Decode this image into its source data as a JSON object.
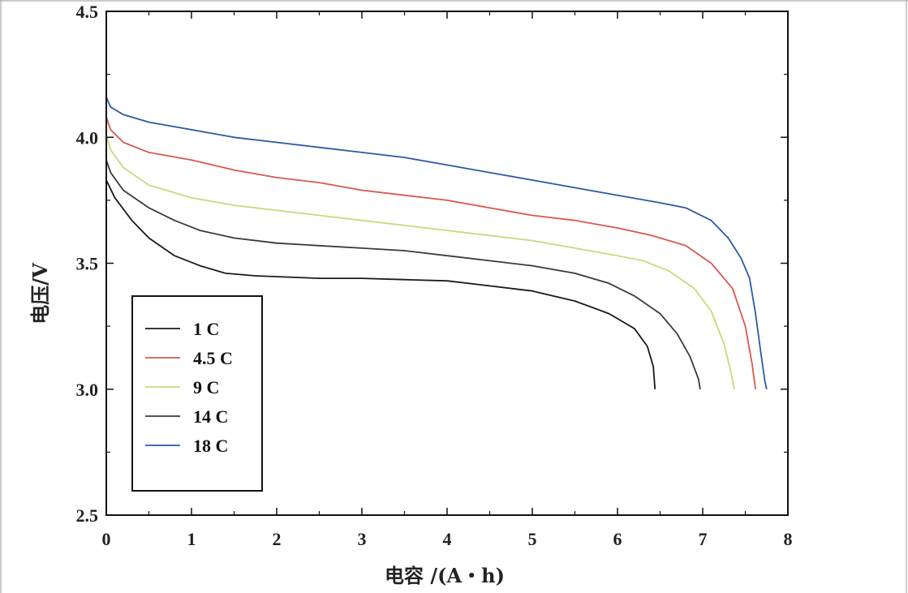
{
  "chart_data": {
    "type": "line",
    "title": "",
    "xlabel": "电容 /(A・h)",
    "ylabel": "电压/V",
    "xlim": [
      0,
      8
    ],
    "ylim": [
      2.5,
      4.5
    ],
    "xticks": [
      0,
      1,
      2,
      3,
      4,
      5,
      6,
      7,
      8
    ],
    "yticks": [
      2.5,
      3.0,
      3.5,
      4.0,
      4.5
    ],
    "xtick_labels": [
      "0",
      "1",
      "2",
      "3",
      "4",
      "5",
      "6",
      "7",
      "8"
    ],
    "ytick_labels": [
      "2.5",
      "3.0",
      "3.5",
      "4.0",
      "4.5"
    ],
    "grid": false,
    "legend_position": "lower-left",
    "series": [
      {
        "name": "1 C",
        "color": "#1a1a1a",
        "points": [
          [
            0,
            3.83
          ],
          [
            0.1,
            3.76
          ],
          [
            0.3,
            3.67
          ],
          [
            0.5,
            3.6
          ],
          [
            0.8,
            3.53
          ],
          [
            1.1,
            3.49
          ],
          [
            1.4,
            3.46
          ],
          [
            1.75,
            3.45
          ],
          [
            2.5,
            3.44
          ],
          [
            3.0,
            3.44
          ],
          [
            3.5,
            3.435
          ],
          [
            4.0,
            3.43
          ],
          [
            4.5,
            3.41
          ],
          [
            5.0,
            3.39
          ],
          [
            5.5,
            3.35
          ],
          [
            5.9,
            3.3
          ],
          [
            6.2,
            3.24
          ],
          [
            6.35,
            3.17
          ],
          [
            6.42,
            3.09
          ],
          [
            6.44,
            3.0
          ]
        ]
      },
      {
        "name": "4.5 C",
        "color": "#d9584f",
        "points": [
          [
            0,
            4.08
          ],
          [
            0.05,
            4.03
          ],
          [
            0.2,
            3.98
          ],
          [
            0.5,
            3.94
          ],
          [
            1.0,
            3.91
          ],
          [
            1.5,
            3.87
          ],
          [
            2.0,
            3.84
          ],
          [
            2.5,
            3.82
          ],
          [
            3.0,
            3.79
          ],
          [
            3.5,
            3.77
          ],
          [
            4.0,
            3.75
          ],
          [
            4.5,
            3.72
          ],
          [
            5.0,
            3.69
          ],
          [
            5.5,
            3.67
          ],
          [
            6.0,
            3.64
          ],
          [
            6.4,
            3.61
          ],
          [
            6.8,
            3.57
          ],
          [
            7.1,
            3.5
          ],
          [
            7.35,
            3.4
          ],
          [
            7.5,
            3.25
          ],
          [
            7.58,
            3.1
          ],
          [
            7.62,
            3.0
          ]
        ]
      },
      {
        "name": "9 C",
        "color": "#c9d97a",
        "points": [
          [
            0,
            4.01
          ],
          [
            0.05,
            3.95
          ],
          [
            0.2,
            3.88
          ],
          [
            0.5,
            3.81
          ],
          [
            1.0,
            3.76
          ],
          [
            1.5,
            3.73
          ],
          [
            2.0,
            3.71
          ],
          [
            2.5,
            3.69
          ],
          [
            3.0,
            3.67
          ],
          [
            3.5,
            3.65
          ],
          [
            4.0,
            3.63
          ],
          [
            4.5,
            3.61
          ],
          [
            5.0,
            3.59
          ],
          [
            5.5,
            3.56
          ],
          [
            6.0,
            3.53
          ],
          [
            6.3,
            3.51
          ],
          [
            6.6,
            3.47
          ],
          [
            6.9,
            3.4
          ],
          [
            7.1,
            3.31
          ],
          [
            7.25,
            3.18
          ],
          [
            7.33,
            3.07
          ],
          [
            7.37,
            3.0
          ]
        ]
      },
      {
        "name": "14 C",
        "color": "#3a3a3a",
        "points": [
          [
            0,
            3.91
          ],
          [
            0.05,
            3.86
          ],
          [
            0.2,
            3.79
          ],
          [
            0.5,
            3.72
          ],
          [
            0.8,
            3.67
          ],
          [
            1.1,
            3.63
          ],
          [
            1.5,
            3.6
          ],
          [
            2.0,
            3.58
          ],
          [
            2.5,
            3.57
          ],
          [
            3.0,
            3.56
          ],
          [
            3.5,
            3.55
          ],
          [
            4.0,
            3.53
          ],
          [
            4.5,
            3.51
          ],
          [
            5.0,
            3.49
          ],
          [
            5.5,
            3.46
          ],
          [
            5.9,
            3.42
          ],
          [
            6.2,
            3.37
          ],
          [
            6.5,
            3.3
          ],
          [
            6.7,
            3.22
          ],
          [
            6.85,
            3.13
          ],
          [
            6.95,
            3.04
          ],
          [
            6.97,
            3.0
          ]
        ]
      },
      {
        "name": "18 C",
        "color": "#2b5aa6",
        "points": [
          [
            0,
            4.16
          ],
          [
            0.05,
            4.12
          ],
          [
            0.2,
            4.09
          ],
          [
            0.5,
            4.06
          ],
          [
            1.0,
            4.03
          ],
          [
            1.5,
            4.0
          ],
          [
            2.0,
            3.98
          ],
          [
            2.5,
            3.96
          ],
          [
            3.0,
            3.94
          ],
          [
            3.5,
            3.92
          ],
          [
            4.0,
            3.89
          ],
          [
            4.5,
            3.86
          ],
          [
            5.0,
            3.83
          ],
          [
            5.5,
            3.8
          ],
          [
            6.0,
            3.77
          ],
          [
            6.5,
            3.74
          ],
          [
            6.8,
            3.72
          ],
          [
            7.1,
            3.67
          ],
          [
            7.3,
            3.6
          ],
          [
            7.45,
            3.52
          ],
          [
            7.55,
            3.44
          ],
          [
            7.62,
            3.3
          ],
          [
            7.68,
            3.15
          ],
          [
            7.73,
            3.03
          ],
          [
            7.75,
            3.0
          ]
        ]
      }
    ]
  }
}
